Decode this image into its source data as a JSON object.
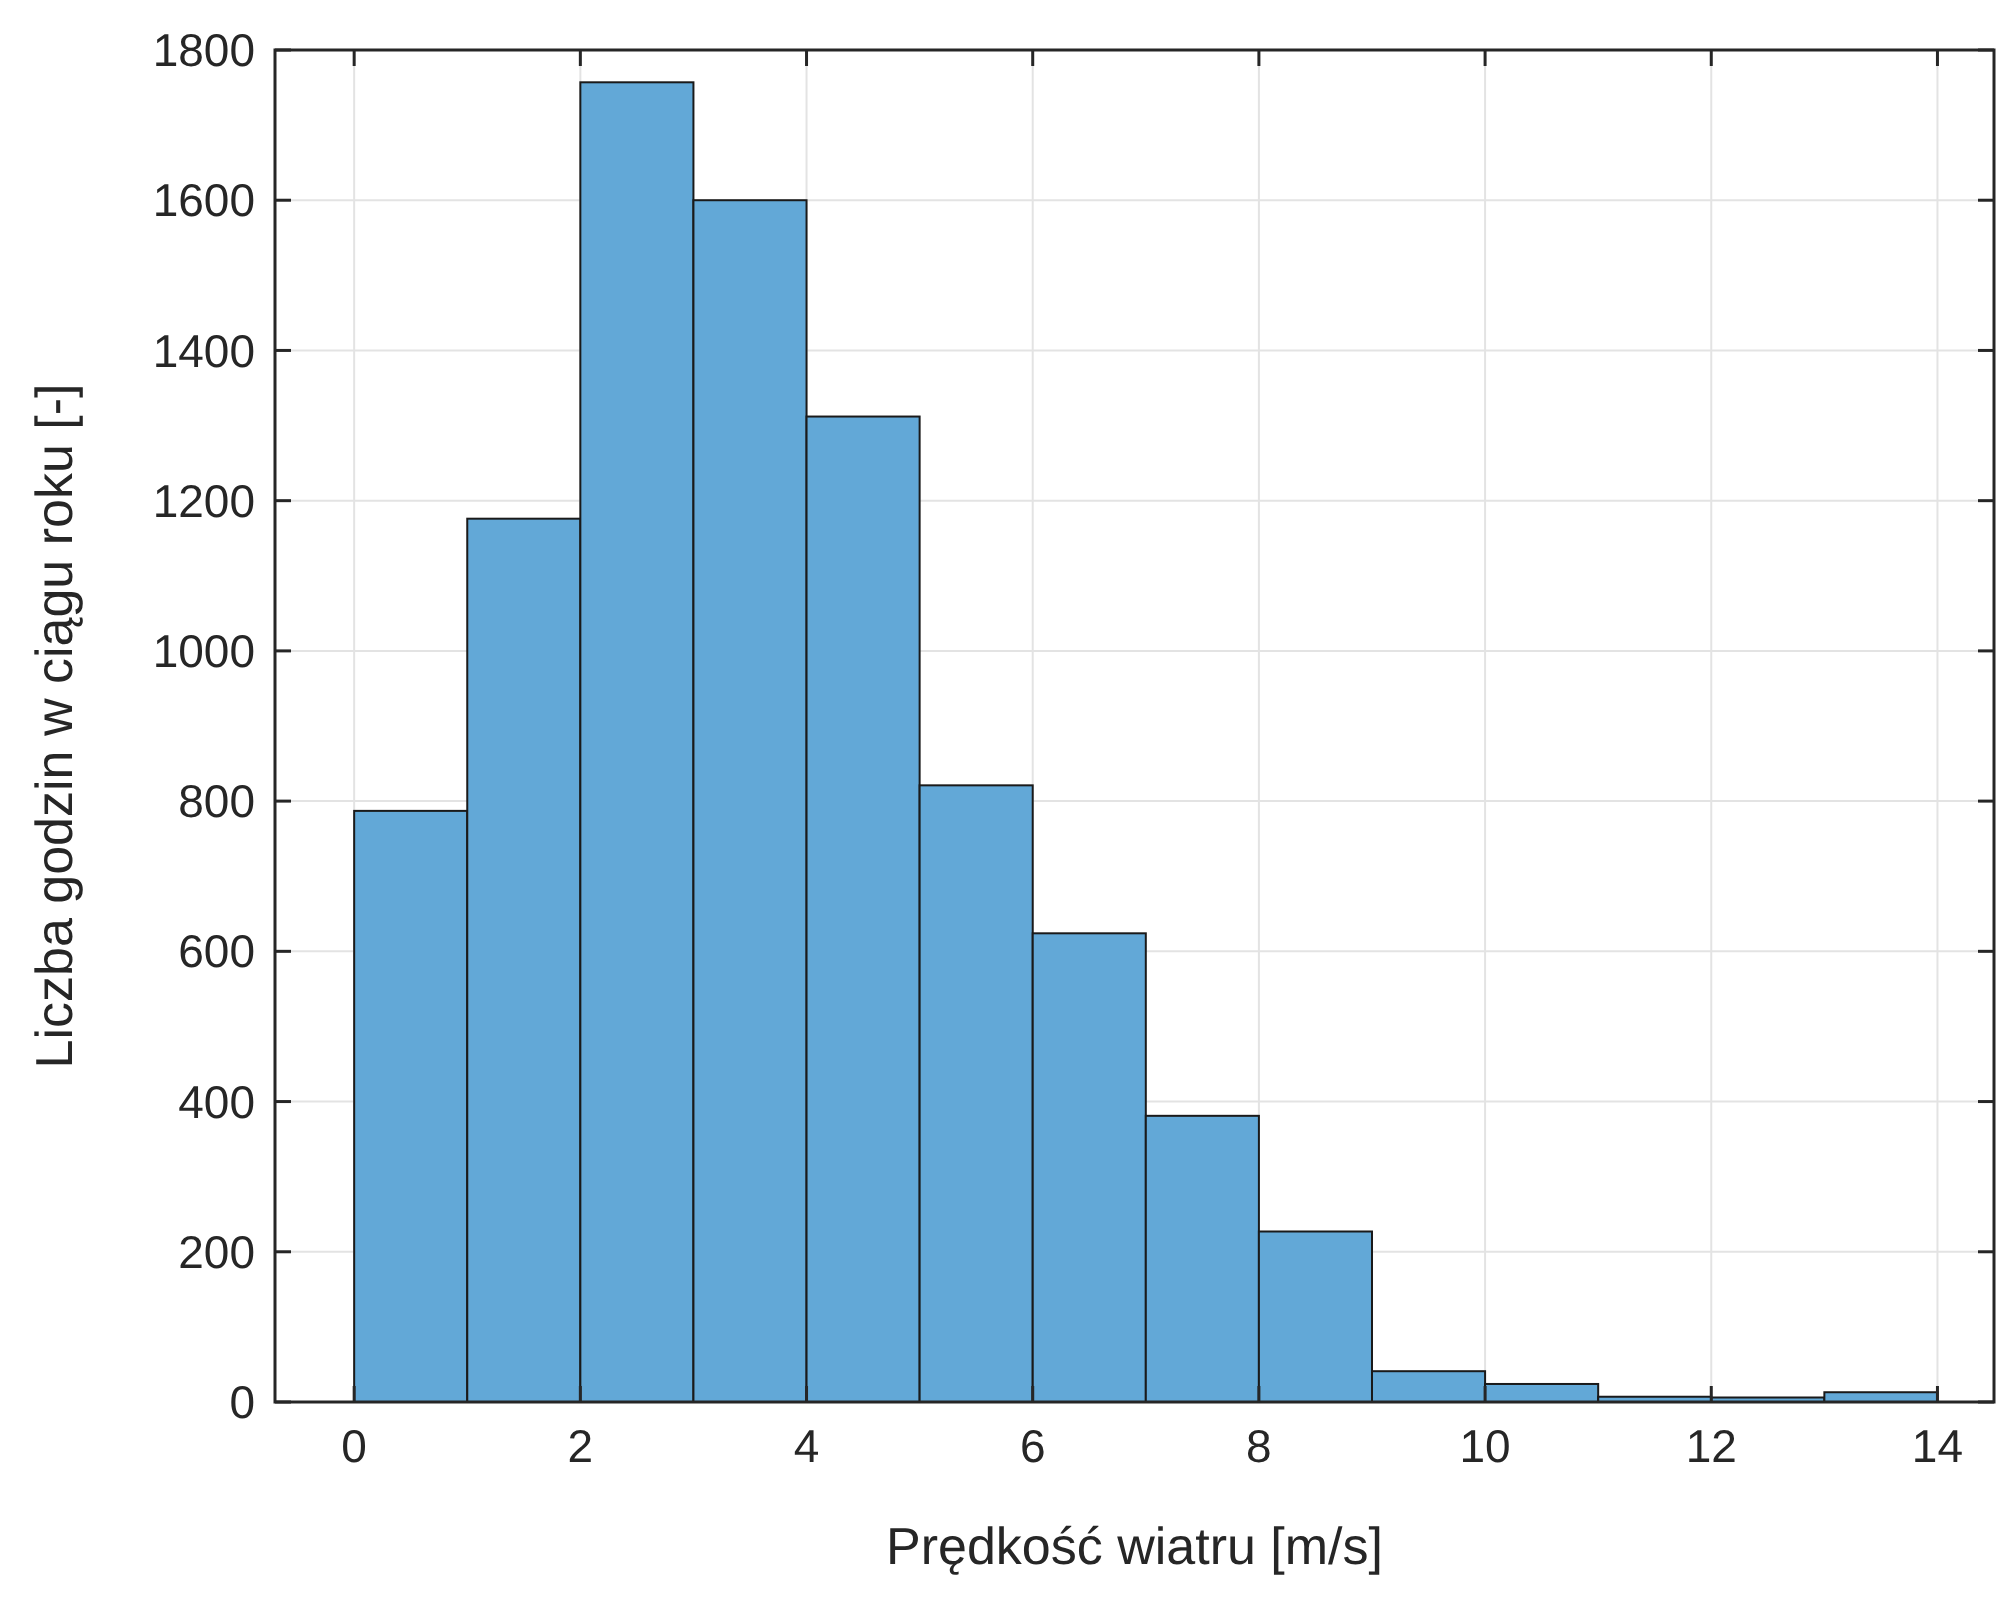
{
  "chart_data": {
    "type": "histogram",
    "xlabel": "Prędkość wiatru [m/s]",
    "ylabel": "Liczba godzin w ciągu roku [-]",
    "bins": [
      0,
      1,
      2,
      3,
      4,
      5,
      6,
      7,
      8,
      9,
      10,
      11,
      12,
      13,
      14
    ],
    "values": [
      787,
      1176,
      1757,
      1600,
      1312,
      821,
      624,
      381,
      227,
      41,
      24,
      7,
      6,
      13
    ],
    "color": "#62a8d7",
    "xlim": [
      -0.7,
      14.5
    ],
    "xticks": [
      0,
      2,
      4,
      6,
      8,
      10,
      12,
      14
    ],
    "ylim": [
      0,
      1800
    ],
    "yticks": [
      0,
      200,
      400,
      600,
      800,
      1000,
      1200,
      1400,
      1600,
      1800
    ],
    "grid": true
  }
}
